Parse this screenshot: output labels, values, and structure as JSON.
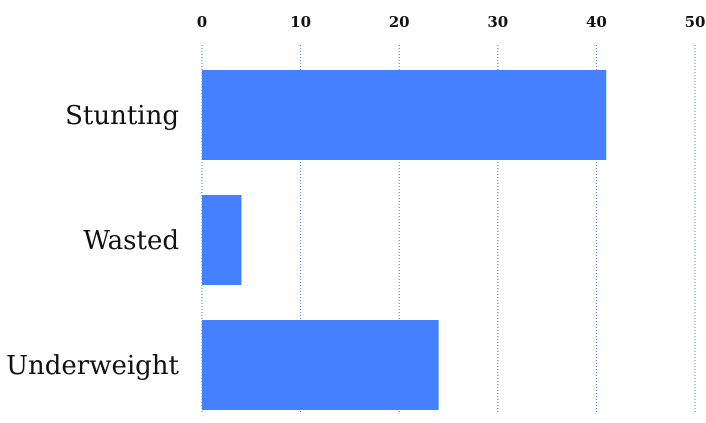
{
  "chart_data": {
    "type": "bar",
    "orientation": "horizontal",
    "categories": [
      "Stunting",
      "Wasted",
      "Underweight"
    ],
    "values": [
      41,
      4,
      24
    ],
    "xlim": [
      0,
      50
    ],
    "xticks": [
      0,
      10,
      20,
      30,
      40,
      50
    ],
    "tick_labels": [
      "0",
      "10",
      "20",
      "30",
      "40",
      "50"
    ],
    "axis_position": "top",
    "grid": true,
    "bar_color": "#4580ff",
    "grid_color": "#4a78c8"
  }
}
